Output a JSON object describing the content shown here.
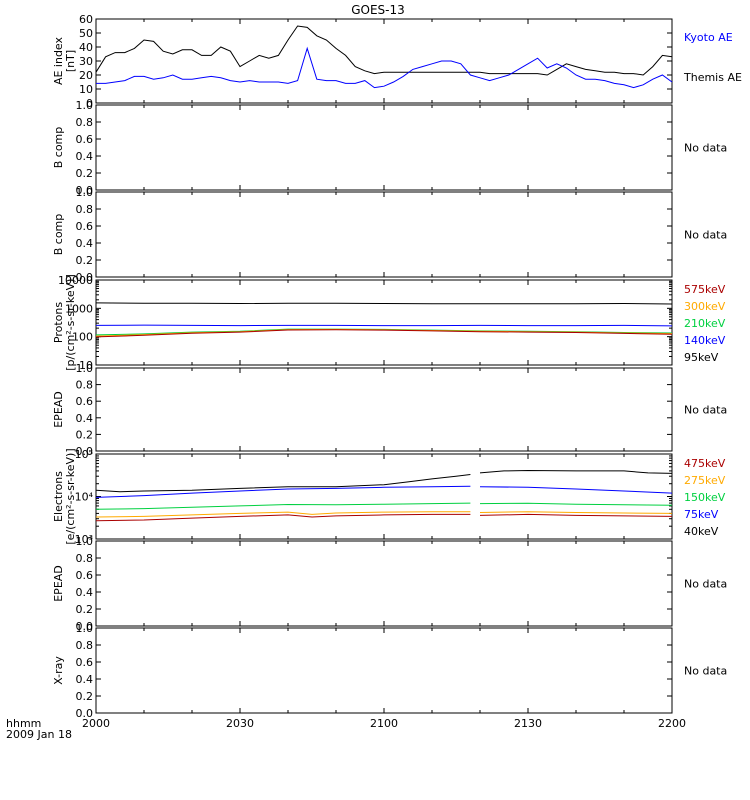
{
  "title": "GOES-13",
  "time_axis": {
    "label_line1": "hhmm",
    "label_line2": "2009 Jan 18",
    "ticks": [
      "2000",
      "2030",
      "2100",
      "2130",
      "2200"
    ],
    "range_minutes": [
      0,
      120
    ]
  },
  "colors": {
    "black": "#000000",
    "blue": "#0000ff",
    "green": "#00d040",
    "orange": "#ffaa00",
    "red": "#aa0000",
    "text": "#000000"
  },
  "chart_data": [
    {
      "type": "line",
      "ylabel": "AE index",
      "ylabel2": "[nT]",
      "ylim": [
        0,
        60
      ],
      "yticks": [
        "0",
        "10",
        "20",
        "30",
        "40",
        "50",
        "60"
      ],
      "legend": [
        {
          "label": "Kyoto AE",
          "color": "#0000ff"
        },
        {
          "label": "Themis AE",
          "color": "#000000"
        }
      ],
      "series": [
        {
          "name": "Themis AE",
          "color": "#000000",
          "x": [
            0,
            2,
            4,
            6,
            8,
            10,
            12,
            14,
            16,
            18,
            20,
            22,
            24,
            26,
            28,
            30,
            32,
            34,
            36,
            38,
            40,
            42,
            44,
            46,
            48,
            50,
            52,
            54,
            56,
            58,
            60,
            62,
            64,
            66,
            68,
            70,
            72,
            74,
            76,
            78,
            80,
            82,
            84,
            86,
            88,
            90,
            92,
            94,
            96,
            98,
            100,
            102,
            104,
            106,
            108,
            110,
            112,
            114,
            116,
            118,
            120
          ],
          "y": [
            22,
            33,
            36,
            36,
            39,
            45,
            44,
            37,
            35,
            38,
            38,
            34,
            34,
            40,
            37,
            26,
            30,
            34,
            32,
            34,
            45,
            55,
            54,
            48,
            45,
            39,
            34,
            26,
            23,
            21,
            22,
            22,
            22,
            22,
            22,
            22,
            22,
            22,
            22,
            22,
            22,
            21,
            21,
            21,
            21,
            21,
            21,
            20,
            24,
            28,
            26,
            24,
            23,
            22,
            22,
            21,
            21,
            20,
            26,
            34,
            33
          ]
        },
        {
          "name": "Kyoto AE",
          "color": "#0000ff",
          "x": [
            0,
            2,
            4,
            6,
            8,
            10,
            12,
            14,
            16,
            18,
            20,
            22,
            24,
            26,
            28,
            30,
            32,
            34,
            36,
            38,
            40,
            42,
            44,
            46,
            48,
            50,
            52,
            54,
            56,
            58,
            60,
            62,
            64,
            66,
            68,
            70,
            72,
            74,
            76,
            78,
            80,
            82,
            84,
            86,
            88,
            90,
            92,
            94,
            96,
            98,
            100,
            102,
            104,
            106,
            108,
            110,
            112,
            114,
            116,
            118,
            120
          ],
          "y": [
            14,
            14,
            15,
            16,
            19,
            19,
            17,
            18,
            20,
            17,
            17,
            18,
            19,
            18,
            16,
            15,
            16,
            15,
            15,
            15,
            14,
            16,
            39,
            17,
            16,
            16,
            14,
            14,
            16,
            11,
            12,
            15,
            19,
            24,
            26,
            28,
            30,
            30,
            28,
            20,
            18,
            16,
            18,
            20,
            24,
            28,
            32,
            25,
            28,
            25,
            20,
            17,
            17,
            16,
            14,
            13,
            11,
            13,
            17,
            20,
            15
          ]
        }
      ]
    },
    {
      "type": "line",
      "ylabel": "B comp",
      "ylim": [
        0,
        1
      ],
      "yticks": [
        "0.0",
        "0.2",
        "0.4",
        "0.6",
        "0.8",
        "1.0"
      ],
      "status": "No data",
      "series": []
    },
    {
      "type": "line",
      "ylabel": "B comp",
      "ylim": [
        0,
        1
      ],
      "yticks": [
        "0.0",
        "0.2",
        "0.4",
        "0.6",
        "0.8",
        "1.0"
      ],
      "status": "No data",
      "series": []
    },
    {
      "type": "line",
      "ylabel": "Protons",
      "ylabel2": "[p/(cm²-s-sr-keV)]",
      "yscale": "log",
      "ylim": [
        10,
        10000
      ],
      "yticks": [
        "10",
        "100",
        "1000",
        "10000"
      ],
      "legend": [
        {
          "label": "575keV",
          "color": "#aa0000"
        },
        {
          "label": "300keV",
          "color": "#ffaa00"
        },
        {
          "label": "210keV",
          "color": "#00d040"
        },
        {
          "label": "140keV",
          "color": "#0000ff"
        },
        {
          "label": "95keV",
          "color": "#000000"
        }
      ],
      "series": [
        {
          "name": "95keV",
          "color": "#000000",
          "x": [
            0,
            10,
            20,
            30,
            40,
            50,
            60,
            70,
            80,
            90,
            100,
            110,
            120
          ],
          "y": [
            1550,
            1500,
            1520,
            1480,
            1500,
            1500,
            1480,
            1450,
            1460,
            1450,
            1450,
            1480,
            1420
          ]
        },
        {
          "name": "140keV",
          "color": "#0000ff",
          "x": [
            0,
            10,
            20,
            30,
            40,
            50,
            60,
            70,
            80,
            90,
            100,
            110,
            120
          ],
          "y": [
            250,
            255,
            250,
            245,
            250,
            250,
            245,
            245,
            250,
            245,
            245,
            250,
            240
          ]
        },
        {
          "name": "210keV",
          "color": "#00d040",
          "x": [
            0,
            10,
            20,
            30,
            40,
            50,
            60,
            70,
            80,
            90,
            100,
            110,
            120
          ],
          "y": [
            115,
            125,
            145,
            155,
            185,
            185,
            180,
            170,
            160,
            155,
            150,
            140,
            135
          ]
        },
        {
          "name": "300keV",
          "color": "#ffaa00",
          "x": [
            0,
            10,
            20,
            30,
            40,
            50,
            60,
            70,
            80,
            90,
            100,
            110,
            120
          ],
          "y": [
            105,
            118,
            138,
            150,
            178,
            180,
            175,
            165,
            155,
            150,
            145,
            135,
            128
          ]
        },
        {
          "name": "575keV",
          "color": "#aa0000",
          "x": [
            0,
            10,
            20,
            30,
            40,
            50,
            60,
            70,
            80,
            90,
            100,
            110,
            120
          ],
          "y": [
            98,
            112,
            132,
            145,
            172,
            175,
            170,
            160,
            150,
            145,
            140,
            130,
            122
          ]
        }
      ]
    },
    {
      "type": "line",
      "ylabel": "EPEAD",
      "ylim": [
        0,
        1
      ],
      "yticks": [
        "0.0",
        "0.2",
        "0.4",
        "0.6",
        "0.8",
        "1.0"
      ],
      "status": "No data",
      "series": []
    },
    {
      "type": "line",
      "ylabel": "Electrons",
      "ylabel2": "[e/(cm²-s-sr-keV)]",
      "yscale": "log",
      "ylim": [
        1000,
        100000
      ],
      "yticks": [
        "10³",
        "10⁴",
        "10⁵"
      ],
      "legend": [
        {
          "label": "475keV",
          "color": "#aa0000"
        },
        {
          "label": "275keV",
          "color": "#ffaa00"
        },
        {
          "label": "150keV",
          "color": "#00d040"
        },
        {
          "label": "75keV",
          "color": "#0000ff"
        },
        {
          "label": "40keV",
          "color": "#000000"
        }
      ],
      "gap_minutes": [
        78,
        80
      ],
      "series": [
        {
          "name": "40keV",
          "color": "#000000",
          "x": [
            0,
            5,
            10,
            20,
            30,
            40,
            50,
            60,
            65,
            70,
            75,
            78,
            80,
            85,
            90,
            100,
            110,
            115,
            120
          ],
          "y": [
            14000,
            13000,
            13500,
            14000,
            15500,
            17000,
            17000,
            19000,
            22000,
            26000,
            30000,
            33000,
            36000,
            40000,
            41000,
            40000,
            40000,
            36000,
            35000
          ]
        },
        {
          "name": "75keV",
          "color": "#0000ff",
          "x": [
            0,
            10,
            20,
            30,
            40,
            50,
            60,
            70,
            78,
            80,
            90,
            100,
            110,
            120
          ],
          "y": [
            9500,
            10500,
            12000,
            13500,
            15000,
            15500,
            16500,
            17000,
            17500,
            17000,
            16500,
            15000,
            13500,
            12000
          ]
        },
        {
          "name": "150keV",
          "color": "#00d040",
          "x": [
            0,
            10,
            20,
            30,
            40,
            50,
            60,
            70,
            78,
            80,
            90,
            100,
            110,
            120
          ],
          "y": [
            5000,
            5200,
            5600,
            6000,
            6500,
            6400,
            6600,
            6800,
            7000,
            6800,
            6900,
            6600,
            6400,
            6200
          ]
        },
        {
          "name": "275keV",
          "color": "#ffaa00",
          "x": [
            0,
            10,
            20,
            30,
            40,
            45,
            50,
            60,
            70,
            78,
            80,
            90,
            100,
            110,
            120
          ],
          "y": [
            3300,
            3400,
            3700,
            4000,
            4300,
            3800,
            4100,
            4300,
            4400,
            4400,
            4200,
            4400,
            4200,
            4100,
            4000
          ]
        },
        {
          "name": "475keV",
          "color": "#aa0000",
          "x": [
            0,
            10,
            20,
            30,
            40,
            45,
            50,
            60,
            70,
            78,
            80,
            90,
            100,
            110,
            120
          ],
          "y": [
            2700,
            2800,
            3100,
            3400,
            3700,
            3300,
            3500,
            3700,
            3800,
            3800,
            3600,
            3800,
            3600,
            3500,
            3400
          ]
        }
      ]
    },
    {
      "type": "line",
      "ylabel": "EPEAD",
      "ylim": [
        0,
        1
      ],
      "yticks": [
        "0.0",
        "0.2",
        "0.4",
        "0.6",
        "0.8",
        "1.0"
      ],
      "status": "No data",
      "series": []
    },
    {
      "type": "line",
      "ylabel": "X-ray",
      "ylim": [
        0,
        1
      ],
      "yticks": [
        "0.0",
        "0.2",
        "0.4",
        "0.6",
        "0.8",
        "1.0"
      ],
      "status": "No data",
      "series": []
    }
  ]
}
